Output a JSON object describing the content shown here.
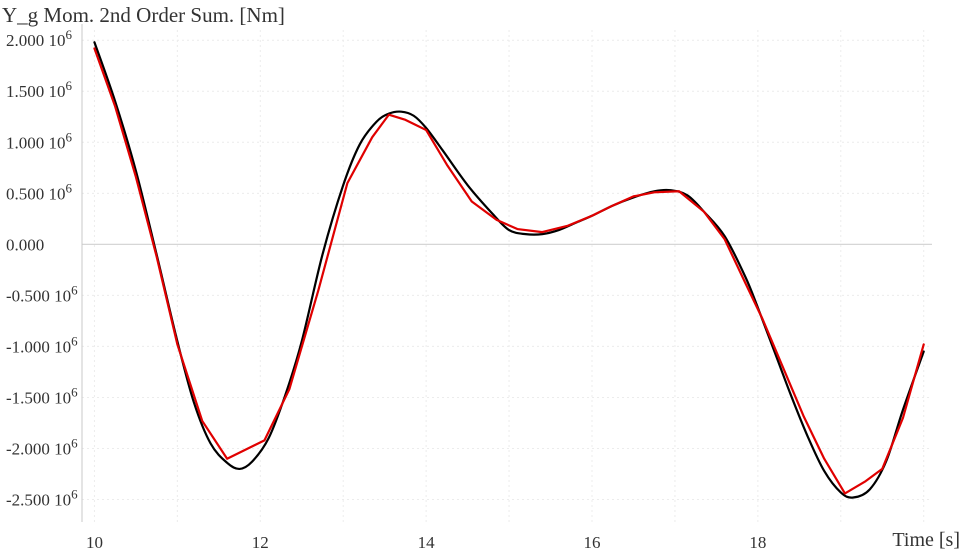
{
  "chart_data": {
    "type": "line",
    "title": "Y_g Mom. 2nd Order Sum. [Nm]",
    "xlabel": "Time [s]",
    "ylabel": "",
    "xlim": [
      9.85,
      20.1
    ],
    "ylim": [
      -2.72,
      2.1
    ],
    "x_ticks": [
      10,
      12,
      14,
      16,
      18
    ],
    "y_ticks": [
      {
        "value": 2.0,
        "label": "2.000 10",
        "exp": "6"
      },
      {
        "value": 1.5,
        "label": "1.500 10",
        "exp": "6"
      },
      {
        "value": 1.0,
        "label": "1.000 10",
        "exp": "6"
      },
      {
        "value": 0.5,
        "label": "0.500 10",
        "exp": "6"
      },
      {
        "value": 0.0,
        "label": "0.000",
        "exp": ""
      },
      {
        "value": -0.5,
        "label": "-0.500 10",
        "exp": "6"
      },
      {
        "value": -1.0,
        "label": "-1.000 10",
        "exp": "6"
      },
      {
        "value": -1.5,
        "label": "-1.500 10",
        "exp": "6"
      },
      {
        "value": -2.0,
        "label": "-2.000 10",
        "exp": "6"
      },
      {
        "value": -2.5,
        "label": "-2.500 10",
        "exp": "6"
      }
    ],
    "grid": true,
    "series": [
      {
        "color": "#000000",
        "smooth": true,
        "x": [
          10.0,
          10.25,
          10.5,
          10.75,
          11.0,
          11.2,
          11.4,
          11.6,
          11.75,
          11.9,
          12.1,
          12.3,
          12.5,
          12.75,
          13.0,
          13.2,
          13.4,
          13.55,
          13.7,
          13.85,
          14.0,
          14.2,
          14.5,
          14.8,
          15.0,
          15.2,
          15.4,
          15.6,
          15.8,
          16.0,
          16.25,
          16.5,
          16.75,
          16.95,
          17.15,
          17.35,
          17.6,
          17.85,
          18.0,
          18.2,
          18.4,
          18.6,
          18.8,
          19.0,
          19.15,
          19.35,
          19.55,
          19.75,
          20.0
        ],
        "y": [
          1.98,
          1.4,
          0.72,
          -0.1,
          -0.95,
          -1.55,
          -1.95,
          -2.14,
          -2.2,
          -2.13,
          -1.9,
          -1.48,
          -0.95,
          -0.1,
          0.58,
          0.98,
          1.2,
          1.28,
          1.3,
          1.26,
          1.14,
          0.92,
          0.58,
          0.3,
          0.14,
          0.1,
          0.1,
          0.14,
          0.21,
          0.28,
          0.38,
          0.46,
          0.52,
          0.53,
          0.48,
          0.32,
          0.08,
          -0.32,
          -0.62,
          -1.05,
          -1.48,
          -1.88,
          -2.22,
          -2.43,
          -2.48,
          -2.4,
          -2.12,
          -1.62,
          -1.05
        ]
      },
      {
        "color": "#e00000",
        "smooth": false,
        "x": [
          10.0,
          10.25,
          10.5,
          10.75,
          11.0,
          11.3,
          11.6,
          12.05,
          12.35,
          12.7,
          13.05,
          13.35,
          13.55,
          13.75,
          14.0,
          14.25,
          14.55,
          14.85,
          15.1,
          15.4,
          15.7,
          16.0,
          16.25,
          16.5,
          16.75,
          17.05,
          17.35,
          17.6,
          17.85,
          18.05,
          18.3,
          18.55,
          18.8,
          19.05,
          19.3,
          19.5,
          19.75,
          20.0
        ],
        "y": [
          1.92,
          1.35,
          0.66,
          -0.12,
          -0.98,
          -1.73,
          -2.1,
          -1.92,
          -1.42,
          -0.45,
          0.6,
          1.05,
          1.27,
          1.22,
          1.12,
          0.78,
          0.42,
          0.24,
          0.15,
          0.12,
          0.18,
          0.28,
          0.38,
          0.47,
          0.51,
          0.52,
          0.32,
          0.05,
          -0.38,
          -0.72,
          -1.2,
          -1.68,
          -2.1,
          -2.44,
          -2.32,
          -2.2,
          -1.7,
          -0.98
        ]
      }
    ]
  }
}
